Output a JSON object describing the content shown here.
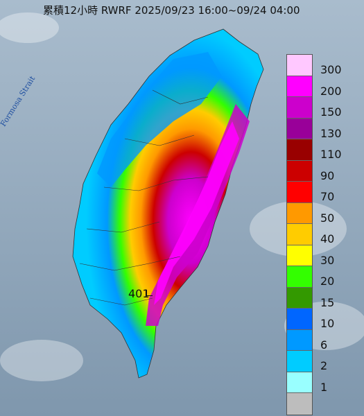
{
  "title": "累積12小時 RWRF 2025/09/23 16:00~09/24 04:00",
  "strait_label": "Formosa Strait",
  "max_label": "401",
  "legend": {
    "levels": [
      "300",
      "200",
      "150",
      "130",
      "110",
      "90",
      "70",
      "50",
      "40",
      "30",
      "20",
      "15",
      "10",
      "6",
      "2",
      "1"
    ],
    "colors": [
      "#ffc8ff",
      "#ff00ff",
      "#cc00cc",
      "#990099",
      "#990000",
      "#cc0000",
      "#ff0000",
      "#ff9900",
      "#ffcc00",
      "#ffff00",
      "#33ff00",
      "#339900",
      "#0066ff",
      "#0099ff",
      "#00ccff",
      "#99ffff",
      "#bdbdbd"
    ]
  }
}
